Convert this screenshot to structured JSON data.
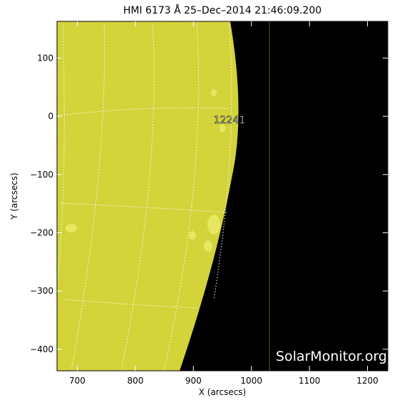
{
  "title": "HMI 6173 Å 25–Dec–2014 21:46:09.200",
  "watermark": "SolarMonitor.org",
  "region_label": "12241",
  "x_axis": {
    "label": "X (arcsecs)",
    "range": [
      665,
      1235
    ],
    "ticks": [
      700,
      800,
      900,
      1000,
      1100,
      1200
    ],
    "tick_labels": [
      "700",
      "800",
      "900",
      "1000",
      "1100",
      "1200"
    ]
  },
  "y_axis": {
    "label": "Y (arcsecs)",
    "range": [
      -437,
      163
    ],
    "ticks": [
      100,
      0,
      -100,
      -200,
      -300,
      -400
    ],
    "tick_labels": [
      "100",
      "0",
      "−100",
      "−200",
      "−300",
      "−400"
    ]
  },
  "colors": {
    "disk": "#d6d62c",
    "space": "#000000",
    "grid": "#ffffff",
    "frame": "#000000",
    "text": "#000000",
    "watermark": "#ffffff"
  }
}
